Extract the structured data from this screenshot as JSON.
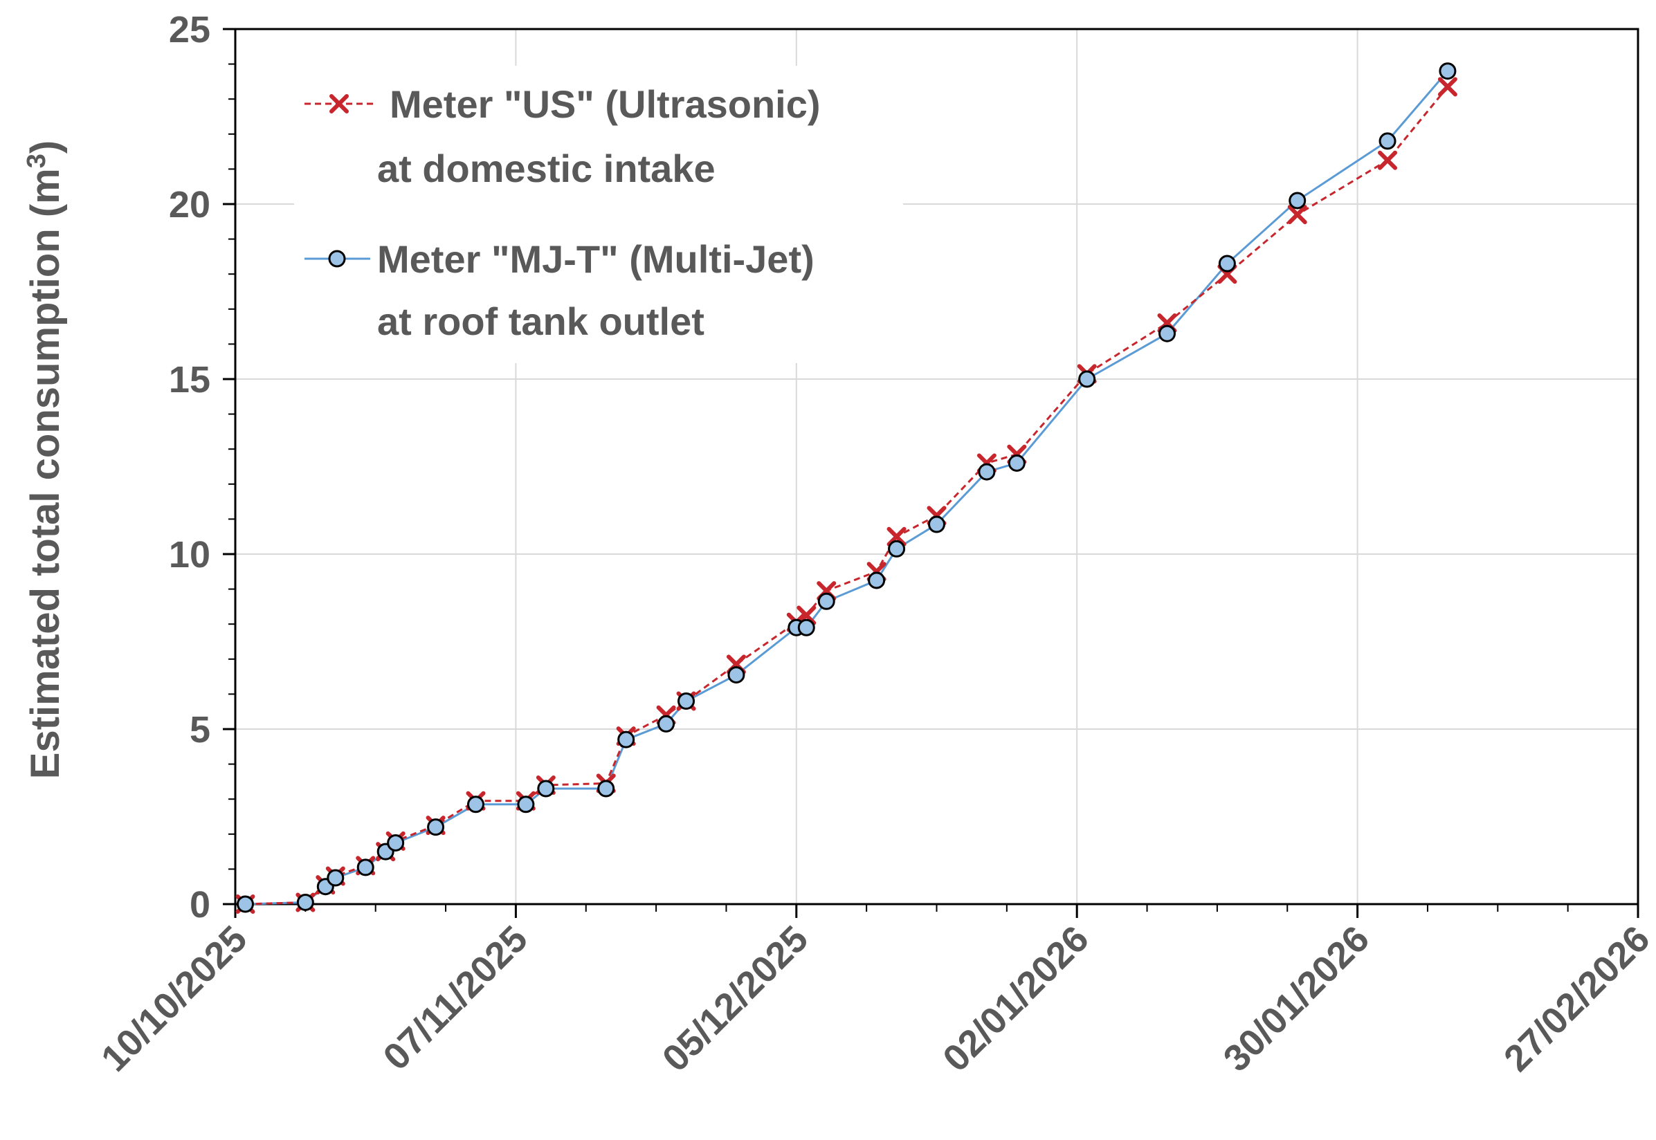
{
  "chart_data": {
    "type": "line",
    "ylabel": "Estimated total consumption (m",
    "ylabel_sup": "3",
    "ylabel_end": ")",
    "xlabel": "",
    "ylim": [
      0,
      25
    ],
    "y_ticks": [
      "0",
      "5",
      "10",
      "15",
      "20",
      "25"
    ],
    "xlim": [
      "2025-10-10",
      "2026-02-27"
    ],
    "x_ticks": [
      "10/10/2025",
      "07/11/2025",
      "05/12/2025",
      "02/01/2026",
      "30/01/2026",
      "27/02/2026"
    ],
    "grid": true,
    "legend_position": "top-left",
    "series": [
      {
        "name_line1": "Meter \"US\" (Ultrasonic)",
        "name_line2": "at domestic intake",
        "color": "#C8262D",
        "marker": "x",
        "line_style": "dashed",
        "points": [
          [
            "2025-10-11",
            0.0
          ],
          [
            "2025-10-17",
            0.05
          ],
          [
            "2025-10-19",
            0.55
          ],
          [
            "2025-10-20",
            0.8
          ],
          [
            "2025-10-23",
            1.1
          ],
          [
            "2025-10-25",
            1.5
          ],
          [
            "2025-10-26",
            1.8
          ],
          [
            "2025-10-30",
            2.25
          ],
          [
            "2025-11-03",
            2.95
          ],
          [
            "2025-11-08",
            2.95
          ],
          [
            "2025-11-10",
            3.4
          ],
          [
            "2025-11-16",
            3.45
          ],
          [
            "2025-11-18",
            4.8
          ],
          [
            "2025-11-22",
            5.4
          ],
          [
            "2025-11-24",
            5.8
          ],
          [
            "2025-11-29",
            6.85
          ],
          [
            "2025-12-05",
            8.05
          ],
          [
            "2025-12-06",
            8.25
          ],
          [
            "2025-12-08",
            8.95
          ],
          [
            "2025-12-13",
            9.5
          ],
          [
            "2025-12-15",
            10.5
          ],
          [
            "2025-12-19",
            11.1
          ],
          [
            "2025-12-24",
            12.6
          ],
          [
            "2025-12-27",
            12.85
          ],
          [
            "2026-01-03",
            15.15
          ],
          [
            "2026-01-11",
            16.6
          ],
          [
            "2026-01-17",
            18.0
          ],
          [
            "2026-01-24",
            19.7
          ],
          [
            "2026-02-02",
            21.25
          ],
          [
            "2026-02-08",
            23.35
          ]
        ]
      },
      {
        "name_line1": "Meter \"MJ-T\" (Multi-Jet)",
        "name_line2": "at roof tank outlet",
        "color": "#5B9BD5",
        "marker_fill": "#9DC3E6",
        "marker": "circle",
        "line_style": "solid",
        "points": [
          [
            "2025-10-11",
            0.0
          ],
          [
            "2025-10-17",
            0.05
          ],
          [
            "2025-10-19",
            0.5
          ],
          [
            "2025-10-20",
            0.75
          ],
          [
            "2025-10-23",
            1.05
          ],
          [
            "2025-10-25",
            1.5
          ],
          [
            "2025-10-26",
            1.75
          ],
          [
            "2025-10-30",
            2.2
          ],
          [
            "2025-11-03",
            2.85
          ],
          [
            "2025-11-08",
            2.85
          ],
          [
            "2025-11-10",
            3.3
          ],
          [
            "2025-11-16",
            3.3
          ],
          [
            "2025-11-18",
            4.7
          ],
          [
            "2025-11-22",
            5.15
          ],
          [
            "2025-11-24",
            5.8
          ],
          [
            "2025-11-29",
            6.55
          ],
          [
            "2025-12-05",
            7.9
          ],
          [
            "2025-12-06",
            7.9
          ],
          [
            "2025-12-08",
            8.65
          ],
          [
            "2025-12-13",
            9.25
          ],
          [
            "2025-12-15",
            10.15
          ],
          [
            "2025-12-19",
            10.85
          ],
          [
            "2025-12-24",
            12.35
          ],
          [
            "2025-12-27",
            12.6
          ],
          [
            "2026-01-03",
            15.0
          ],
          [
            "2026-01-11",
            16.3
          ],
          [
            "2026-01-17",
            18.3
          ],
          [
            "2026-01-24",
            20.1
          ],
          [
            "2026-02-02",
            21.8
          ],
          [
            "2026-02-08",
            23.8
          ]
        ]
      }
    ]
  }
}
